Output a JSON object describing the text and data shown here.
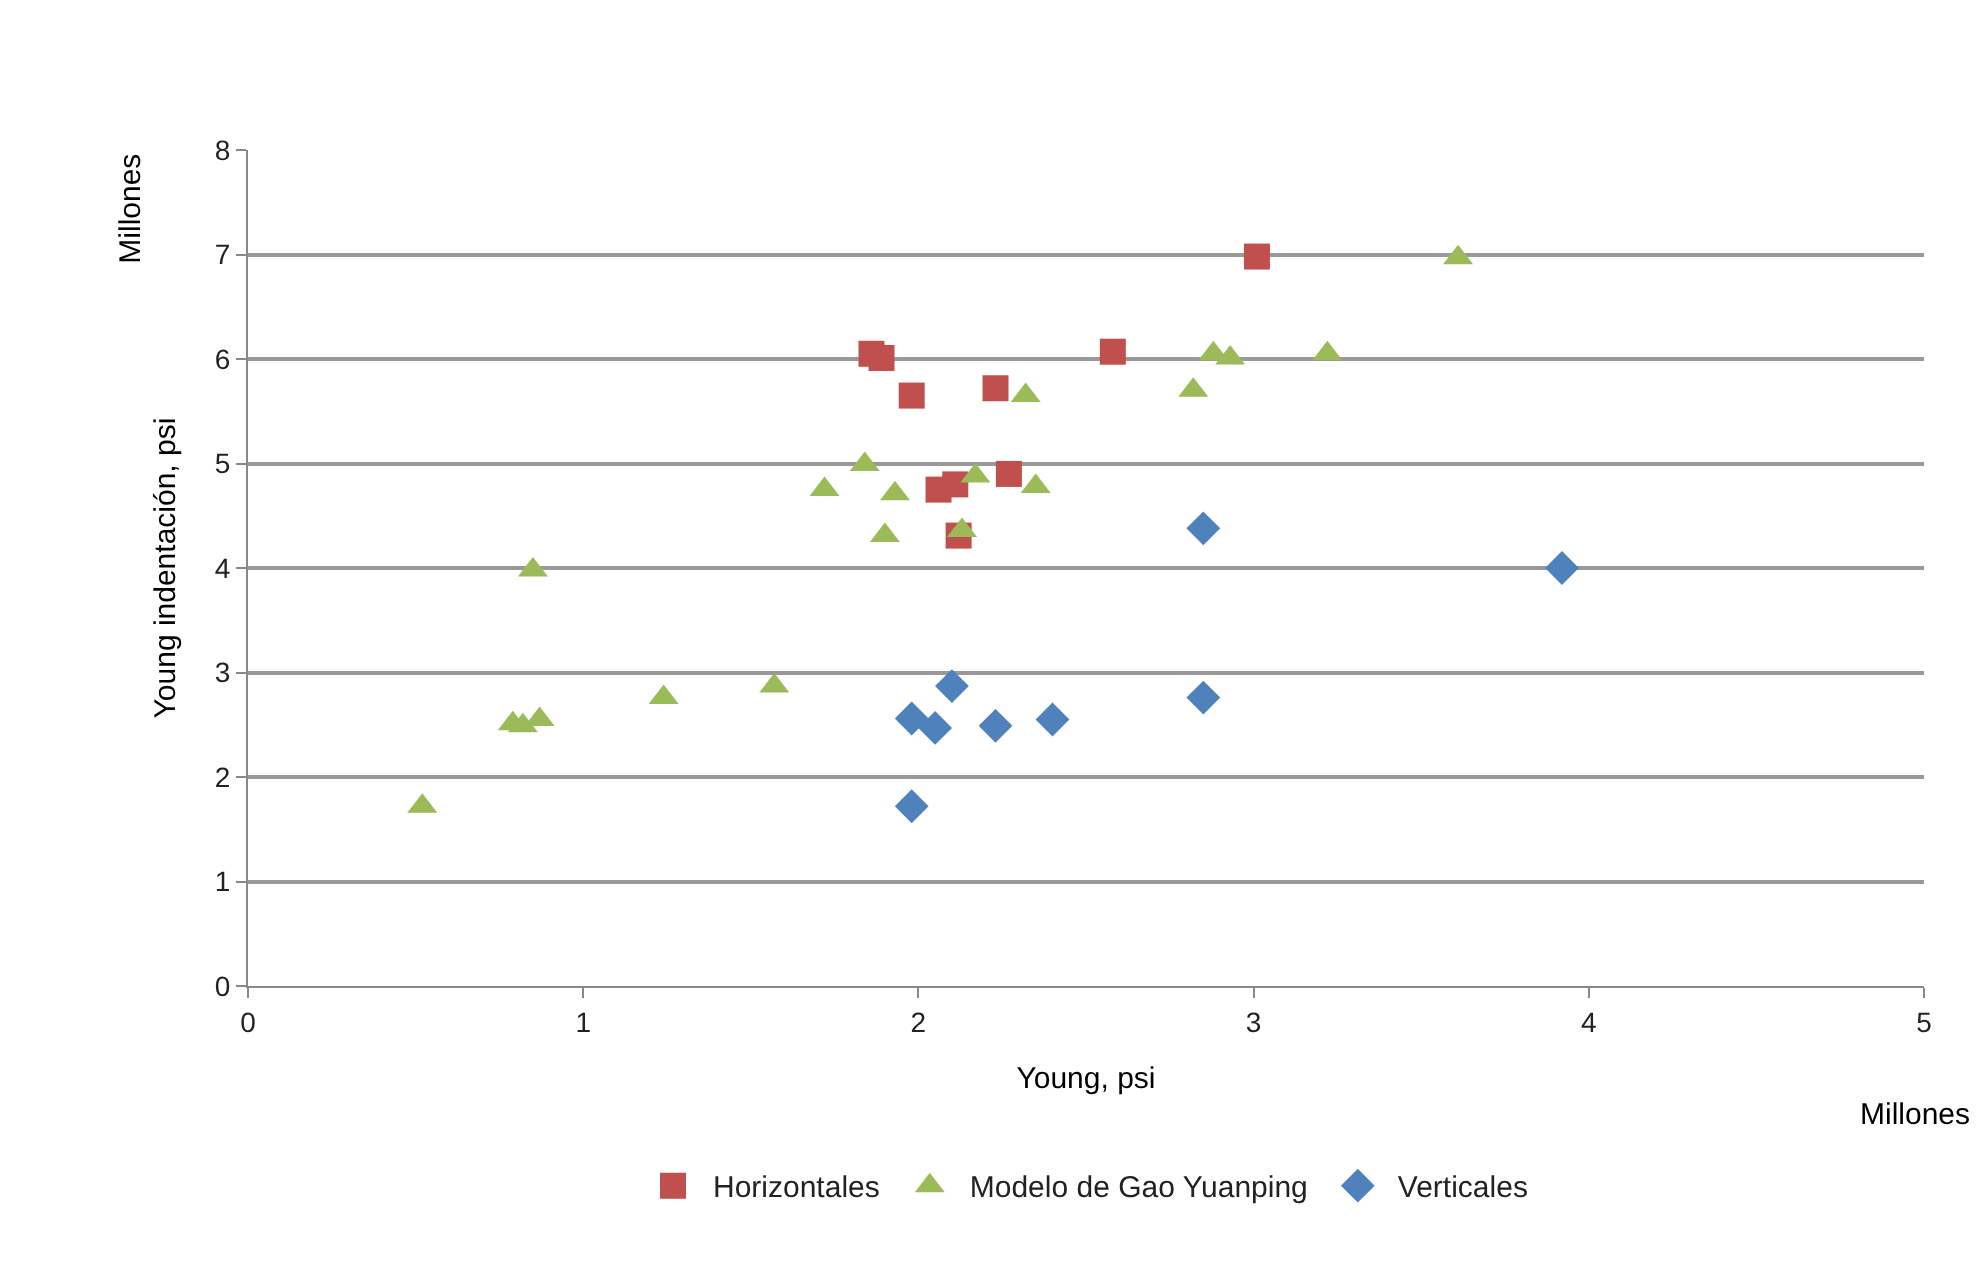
{
  "chart_data": {
    "type": "scatter",
    "xlabel": "Young, psi",
    "ylabel": "Young indentación, psi",
    "annotations": [
      "Millones",
      "Millones"
    ],
    "xlim": [
      0,
      5
    ],
    "xticks": [
      0,
      1,
      2,
      3,
      4,
      5
    ],
    "ylim": [
      0,
      8
    ],
    "yticks": [
      0,
      1,
      2,
      3,
      4,
      5,
      6,
      7,
      8
    ],
    "grid": "y",
    "legend": "bottom",
    "series": [
      {
        "name": "Horizontales",
        "color": "#c0504d",
        "marker": "square",
        "x": [
          1.86,
          1.89,
          1.98,
          2.23,
          2.58,
          3.01,
          2.06,
          2.11,
          2.27,
          2.12
        ],
        "values": [
          6.05,
          6.01,
          5.65,
          5.72,
          6.07,
          6.98,
          4.75,
          4.8,
          4.9,
          4.31
        ]
      },
      {
        "name": "Modelo de Gao Yuanping",
        "color": "#9bbb59",
        "marker": "triangle",
        "x": [
          3.61,
          2.88,
          2.93,
          3.22,
          2.82,
          2.32,
          1.84,
          1.72,
          1.93,
          1.9,
          2.17,
          2.35,
          2.13,
          0.85,
          0.79,
          0.82,
          0.87,
          1.24,
          1.57,
          0.52
        ],
        "values": [
          6.97,
          6.05,
          6.01,
          6.05,
          5.7,
          5.65,
          4.99,
          4.75,
          4.71,
          4.31,
          4.88,
          4.78,
          4.36,
          3.98,
          2.51,
          2.49,
          2.55,
          2.76,
          2.87,
          1.72
        ]
      },
      {
        "name": "Verticales",
        "color": "#4f81bd",
        "marker": "diamond",
        "x": [
          2.1,
          1.98,
          2.05,
          2.23,
          2.4,
          1.98,
          2.85,
          3.92,
          2.85
        ],
        "values": [
          2.87,
          2.56,
          2.47,
          2.49,
          2.55,
          1.72,
          4.38,
          4.0,
          2.76
        ]
      }
    ]
  }
}
